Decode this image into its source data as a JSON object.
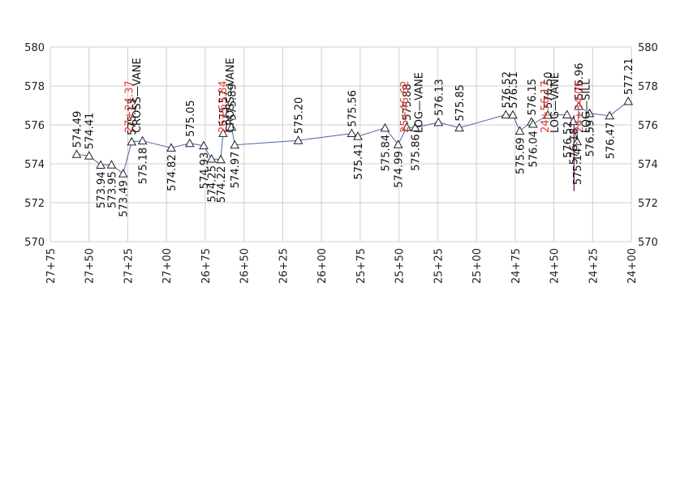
{
  "chart_data": {
    "type": "line",
    "title": "",
    "xlabel": "",
    "ylabel": "",
    "x_reversed": true,
    "xlim": [
      2775,
      2400
    ],
    "ylim": [
      570,
      580
    ],
    "yticks": [
      570,
      572,
      574,
      576,
      578,
      580
    ],
    "xticks": [
      {
        "v": 2775,
        "label": "27+75"
      },
      {
        "v": 2750,
        "label": "27+50"
      },
      {
        "v": 2725,
        "label": "27+25"
      },
      {
        "v": 2700,
        "label": "27+00"
      },
      {
        "v": 2675,
        "label": "26+75"
      },
      {
        "v": 2650,
        "label": "26+50"
      },
      {
        "v": 2625,
        "label": "26+25"
      },
      {
        "v": 2600,
        "label": "26+00"
      },
      {
        "v": 2575,
        "label": "25+75"
      },
      {
        "v": 2550,
        "label": "25+50"
      },
      {
        "v": 2525,
        "label": "25+25"
      },
      {
        "v": 2500,
        "label": "25+00"
      },
      {
        "v": 2475,
        "label": "24+75"
      },
      {
        "v": 2450,
        "label": "24+50"
      },
      {
        "v": 2425,
        "label": "24+25"
      },
      {
        "v": 2400,
        "label": "24+00"
      }
    ],
    "grid": true,
    "series": [
      {
        "color": "#4a66b0",
        "points": [
          {
            "x": 2758,
            "y": 574.49,
            "label": "574.49",
            "pos": "above"
          },
          {
            "x": 2750,
            "y": 574.41,
            "label": "574.41",
            "pos": "above"
          },
          {
            "x": 2742.5,
            "y": 573.94,
            "label": "573.94",
            "pos": "below"
          },
          {
            "x": 2735.5,
            "y": 573.95,
            "label": "573.95",
            "pos": "below"
          },
          {
            "x": 2728,
            "y": 573.49,
            "label": "573.49",
            "pos": "below"
          },
          {
            "x": 2722.5,
            "y": 575.13,
            "label": "575.13",
            "pos": "above"
          },
          {
            "x": 2715.5,
            "y": 575.18,
            "label": "575.18",
            "pos": "below"
          },
          {
            "x": 2697,
            "y": 574.82,
            "label": "574.82",
            "pos": "below"
          },
          {
            "x": 2685,
            "y": 575.05,
            "label": "575.05",
            "pos": "above"
          },
          {
            "x": 2676,
            "y": 574.93,
            "label": "574.93",
            "pos": "below"
          },
          {
            "x": 2671,
            "y": 574.25,
            "label": "574.25",
            "pos": "below"
          },
          {
            "x": 2665,
            "y": 574.22,
            "label": "574.22",
            "pos": "below"
          },
          {
            "x": 2663.5,
            "y": 575.57,
            "label": "575.57",
            "pos": "above"
          },
          {
            "x": 2658,
            "y": 575.89,
            "label": "575.89",
            "pos": "above"
          },
          {
            "x": 2656,
            "y": 574.97,
            "label": "574.97",
            "pos": "below"
          },
          {
            "x": 2615,
            "y": 575.2,
            "label": "575.20",
            "pos": "above"
          },
          {
            "x": 2580.5,
            "y": 575.56,
            "label": "575.56",
            "pos": "above"
          },
          {
            "x": 2576.5,
            "y": 575.41,
            "label": "575.41",
            "pos": "below"
          },
          {
            "x": 2559,
            "y": 575.84,
            "label": "575.84",
            "pos": "below"
          },
          {
            "x": 2550.5,
            "y": 574.99,
            "label": "574.99",
            "pos": "below"
          },
          {
            "x": 2545,
            "y": 575.88,
            "label": "575.88",
            "pos": "above"
          },
          {
            "x": 2539.5,
            "y": 575.86,
            "label": "575.86",
            "pos": "below"
          },
          {
            "x": 2524.5,
            "y": 576.13,
            "label": "576.13",
            "pos": "above"
          },
          {
            "x": 2511,
            "y": 575.85,
            "label": "575.85",
            "pos": "above"
          },
          {
            "x": 2481,
            "y": 576.52,
            "label": "576.52",
            "pos": "above"
          },
          {
            "x": 2476.5,
            "y": 576.51,
            "label": "576.51",
            "pos": "above"
          },
          {
            "x": 2472,
            "y": 575.69,
            "label": "575.69",
            "pos": "below"
          },
          {
            "x": 2464.5,
            "y": 576.15,
            "label": "576.15",
            "pos": "above"
          },
          {
            "x": 2463.5,
            "y": 576.04,
            "label": "576.04",
            "pos": "below"
          },
          {
            "x": 2454,
            "y": 576.5,
            "label": "576.50",
            "pos": "above"
          },
          {
            "x": 2441.5,
            "y": 576.52,
            "label": "576.52",
            "pos": "below"
          },
          {
            "x": 2437.5,
            "y": 576.18,
            "label": "576.18",
            "pos": "below"
          },
          {
            "x": 2435,
            "y": 575.14,
            "label": "575.14",
            "pos": "below"
          },
          {
            "x": 2434,
            "y": 576.96,
            "label": "576.96",
            "pos": "above"
          },
          {
            "x": 2427,
            "y": 576.59,
            "label": "576.59",
            "pos": "below"
          },
          {
            "x": 2414,
            "y": 576.47,
            "label": "576.47",
            "pos": "below"
          },
          {
            "x": 2402,
            "y": 577.21,
            "label": "577.21",
            "pos": "above"
          }
        ]
      }
    ],
    "annotations": [
      {
        "x": 2724.37,
        "text": "27+24.37",
        "color": "#e8362f"
      },
      {
        "x": 2719.5,
        "text": "CROSS—VANE",
        "color": "#111111"
      },
      {
        "x": 2663.84,
        "text": "26+63.84",
        "color": "#e8362f"
      },
      {
        "x": 2659.2,
        "text": "CROSS—VANE",
        "color": "#111111"
      },
      {
        "x": 2546.62,
        "text": "25+46.62",
        "color": "#e8362f"
      },
      {
        "x": 2537.5,
        "text": "LOG—VANE",
        "color": "#111111"
      },
      {
        "x": 2456.17,
        "text": "24+56.17",
        "color": "#e8362f"
      },
      {
        "x": 2449.8,
        "text": "LOG—VANE",
        "color": "#111111"
      },
      {
        "x": 2434.05,
        "text": "24+34.05",
        "color": "#e8362f"
      },
      {
        "x": 2429.5,
        "text": "LOG—SILL",
        "color": "#111111"
      }
    ],
    "markers": [
      {
        "x": 2437,
        "y_top": 576.5,
        "y_bottom": 572.6,
        "color": "#8b2b6e"
      }
    ]
  }
}
